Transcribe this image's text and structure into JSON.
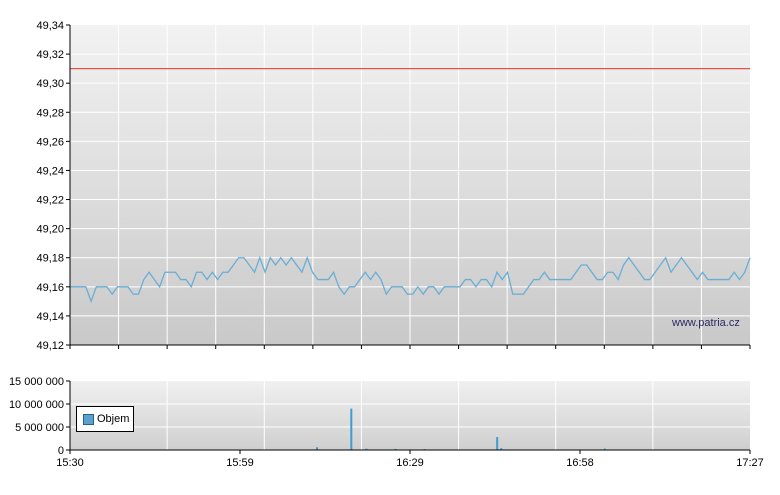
{
  "colors": {
    "price_line": "#6aaed6",
    "reference_line": "#e0524a",
    "volume_bar": "#3f9bd0",
    "grid": "#ffffff"
  },
  "watermark": "www.patria.cz",
  "chart_data": [
    {
      "type": "line",
      "name": "price",
      "ylim": [
        49.12,
        49.34
      ],
      "y_ticks": [
        "49,34",
        "49,32",
        "49,30",
        "49,28",
        "49,26",
        "49,24",
        "49,22",
        "49,20",
        "49,18",
        "49,16",
        "49,14",
        "49,12"
      ],
      "reference_value": 49.31,
      "x_range": [
        0,
        117
      ],
      "x_ticks": [
        "15:30",
        "15:59",
        "16:29",
        "16:58",
        "17:27"
      ],
      "values": [
        49.16,
        49.16,
        49.16,
        49.16,
        49.15,
        49.16,
        49.16,
        49.16,
        49.155,
        49.16,
        49.16,
        49.16,
        49.155,
        49.155,
        49.165,
        49.17,
        49.165,
        49.16,
        49.17,
        49.17,
        49.17,
        49.165,
        49.165,
        49.16,
        49.17,
        49.17,
        49.165,
        49.17,
        49.165,
        49.17,
        49.17,
        49.175,
        49.18,
        49.18,
        49.175,
        49.17,
        49.18,
        49.17,
        49.18,
        49.175,
        49.18,
        49.175,
        49.18,
        49.175,
        49.17,
        49.18,
        49.17,
        49.165,
        49.165,
        49.165,
        49.17,
        49.16,
        49.155,
        49.16,
        49.16,
        49.165,
        49.17,
        49.165,
        49.17,
        49.165,
        49.155,
        49.16,
        49.16,
        49.16,
        49.155,
        49.155,
        49.16,
        49.155,
        49.16,
        49.16,
        49.155,
        49.16,
        49.16,
        49.16,
        49.16,
        49.165,
        49.165,
        49.16,
        49.165,
        49.165,
        49.16,
        49.17,
        49.165,
        49.17,
        49.155,
        49.155,
        49.155,
        49.16,
        49.165,
        49.165,
        49.17,
        49.165,
        49.165,
        49.165,
        49.165,
        49.165,
        49.17,
        49.175,
        49.175,
        49.17,
        49.165,
        49.165,
        49.17,
        49.17,
        49.165,
        49.175,
        49.18,
        49.175,
        49.17,
        49.165,
        49.165,
        49.17,
        49.175,
        49.18,
        49.17,
        49.175,
        49.18,
        49.175,
        49.17,
        49.165,
        49.17,
        49.165,
        49.165,
        49.165,
        49.165,
        49.165,
        49.17,
        49.165,
        49.17,
        49.18
      ]
    },
    {
      "type": "bar",
      "name": "volume",
      "legend": "Objem",
      "ylim": [
        0,
        15000000
      ],
      "y_ticks": [
        "15 000 000",
        "10 000 000",
        "5 000 000",
        "0"
      ],
      "bars": [
        {
          "x": 42.5,
          "value": 600000
        },
        {
          "x": 48.4,
          "value": 9000000
        },
        {
          "x": 51.0,
          "value": 300000
        },
        {
          "x": 56.0,
          "value": 250000
        },
        {
          "x": 61.0,
          "value": 200000
        },
        {
          "x": 73.5,
          "value": 2800000
        },
        {
          "x": 74.2,
          "value": 400000
        },
        {
          "x": 92.0,
          "value": 300000
        }
      ]
    }
  ]
}
